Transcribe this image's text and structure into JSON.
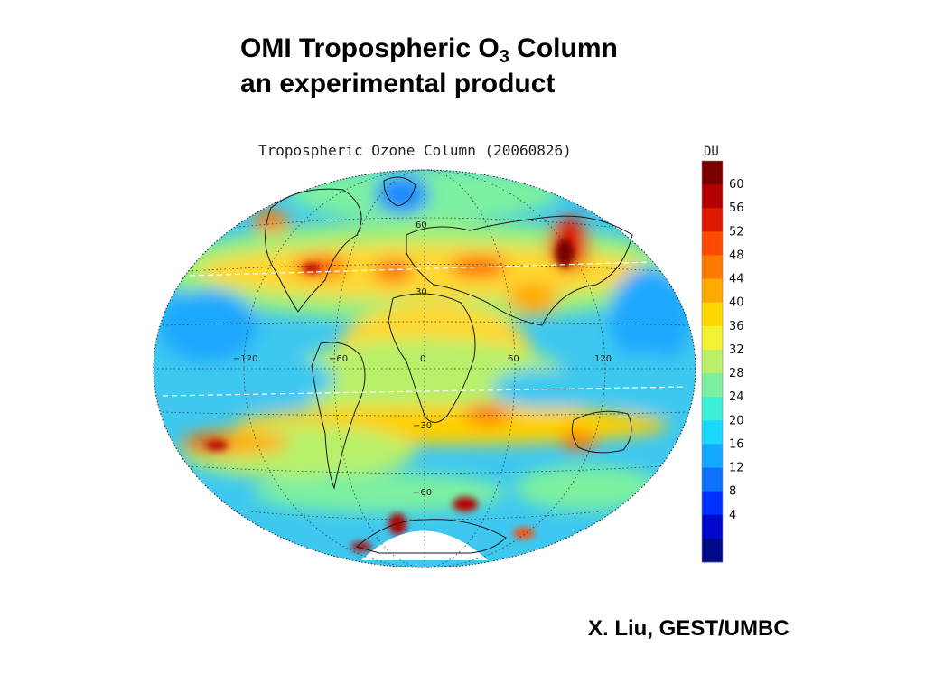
{
  "slide": {
    "title_line1_prefix": "OMI Tropospheric O",
    "title_subscript": "3",
    "title_line1_suffix": " Column",
    "title_line2": "an experimental product",
    "credit": "X. Liu, GEST/UMBC"
  },
  "map": {
    "title": "Tropospheric Ozone Column (20060826)",
    "projection": "hammer-aitoff",
    "longitude_labels": [
      "−120",
      "−60",
      "0",
      "60",
      "120"
    ],
    "latitude_labels": [
      "60",
      "30",
      "−30",
      "−60"
    ],
    "no_data_region": "south-pole"
  },
  "colorbar": {
    "unit": "DU",
    "ticks": [
      "60",
      "56",
      "52",
      "48",
      "44",
      "40",
      "36",
      "32",
      "28",
      "24",
      "20",
      "16",
      "12",
      "8",
      "4"
    ],
    "colors": [
      "#7a0000",
      "#b40000",
      "#e01a00",
      "#ff4a00",
      "#ff7a00",
      "#ffaa00",
      "#ffd800",
      "#f2f230",
      "#b8f06a",
      "#7df0a0",
      "#3ef0d8",
      "#1ad8ff",
      "#12aaff",
      "#0c72ff",
      "#0030ff",
      "#0008d0",
      "#000a8a"
    ]
  }
}
